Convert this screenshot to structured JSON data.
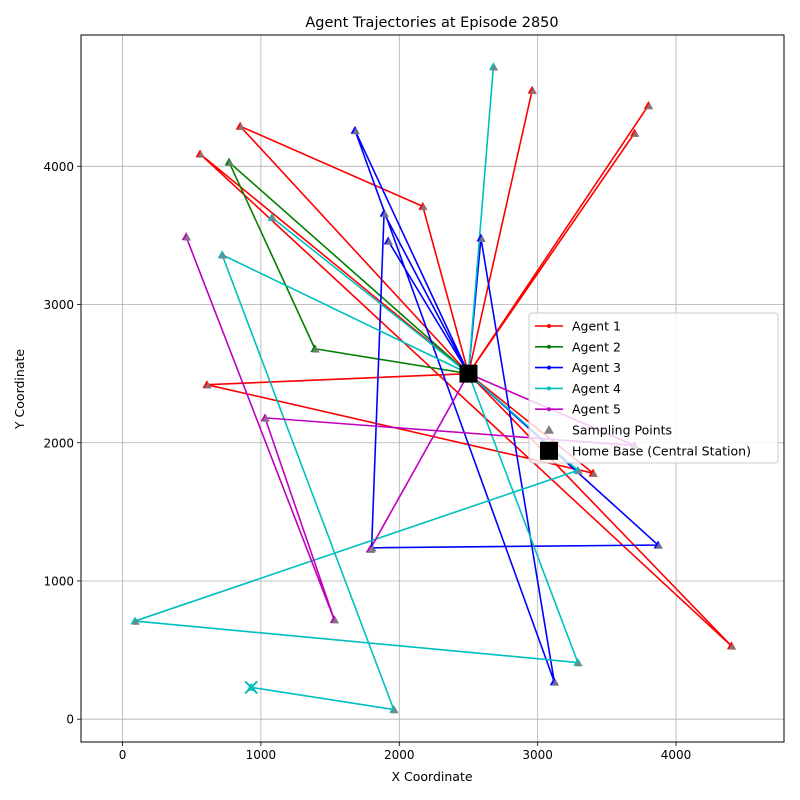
{
  "chart_data": {
    "type": "line",
    "title": "Agent Trajectories at Episode 2850",
    "xlabel": "X Coordinate",
    "ylabel": "Y Coordinate",
    "xlim": [
      -300,
      4780
    ],
    "ylim": [
      -165,
      4950
    ],
    "xticks": [
      0,
      1000,
      2000,
      3000,
      4000
    ],
    "yticks": [
      0,
      1000,
      2000,
      3000,
      4000
    ],
    "grid": true,
    "legend_position": "center-right",
    "home_base": {
      "name": "Home Base (Central Station)",
      "x": 2500,
      "y": 2500,
      "color": "#000000"
    },
    "sampling_points_label": "Sampling Points",
    "series": [
      {
        "name": "Agent 1",
        "color": "#ff0000",
        "points": [
          [
            2500,
            2500
          ],
          [
            3800,
            4440
          ],
          [
            2500,
            2500
          ],
          [
            2960,
            4550
          ],
          [
            2500,
            2500
          ],
          [
            3700,
            4240
          ],
          [
            2500,
            2500
          ],
          [
            610,
            2420
          ],
          [
            3400,
            1780
          ],
          [
            2500,
            2500
          ],
          [
            4400,
            530
          ],
          [
            560,
            4090
          ],
          [
            2500,
            2500
          ],
          [
            2170,
            3710
          ],
          [
            850,
            4290
          ],
          [
            2500,
            2500
          ]
        ]
      },
      {
        "name": "Agent 2",
        "color": "#008000",
        "points": [
          [
            2500,
            2500
          ],
          [
            1390,
            2680
          ],
          [
            770,
            4030
          ],
          [
            2500,
            2500
          ]
        ]
      },
      {
        "name": "Agent 3",
        "color": "#0000ff",
        "points": [
          [
            2500,
            2500
          ],
          [
            2590,
            3480
          ],
          [
            3120,
            270
          ],
          [
            1680,
            4260
          ],
          [
            2500,
            2500
          ],
          [
            1890,
            3660
          ],
          [
            1800,
            1240
          ],
          [
            3870,
            1260
          ],
          [
            2500,
            2500
          ],
          [
            1920,
            3460
          ],
          [
            2500,
            2500
          ]
        ]
      },
      {
        "name": "Agent 4",
        "color": "#00bfbf",
        "points": [
          [
            2500,
            2500
          ],
          [
            2680,
            4720
          ],
          [
            2500,
            2500
          ],
          [
            3290,
            1800
          ],
          [
            90,
            710
          ],
          [
            3290,
            410
          ],
          [
            2500,
            2500
          ],
          [
            1080,
            3630
          ],
          [
            2500,
            2500
          ],
          [
            720,
            3360
          ],
          [
            1960,
            70
          ],
          [
            930,
            230
          ]
        ]
      },
      {
        "name": "Agent 5",
        "color": "#bf00bf",
        "points": [
          [
            2500,
            2500
          ],
          [
            1790,
            1230
          ],
          [
            2500,
            2500
          ],
          [
            3700,
            1980
          ],
          [
            1030,
            2180
          ],
          [
            1530,
            720
          ],
          [
            460,
            3490
          ]
        ]
      }
    ],
    "sampling_points": [
      [
        3800,
        4440
      ],
      [
        2960,
        4550
      ],
      [
        3700,
        4240
      ],
      [
        610,
        2420
      ],
      [
        3400,
        1780
      ],
      [
        4400,
        530
      ],
      [
        560,
        4090
      ],
      [
        2170,
        3710
      ],
      [
        850,
        4290
      ],
      [
        1390,
        2680
      ],
      [
        770,
        4030
      ],
      [
        2590,
        3480
      ],
      [
        3120,
        270
      ],
      [
        1680,
        4260
      ],
      [
        1890,
        3660
      ],
      [
        1800,
        1240
      ],
      [
        3870,
        1260
      ],
      [
        1920,
        3460
      ],
      [
        2680,
        4720
      ],
      [
        3290,
        1800
      ],
      [
        90,
        710
      ],
      [
        3290,
        410
      ],
      [
        1080,
        3630
      ],
      [
        720,
        3360
      ],
      [
        1960,
        70
      ],
      [
        1790,
        1230
      ],
      [
        3700,
        1980
      ],
      [
        1030,
        2180
      ],
      [
        1530,
        720
      ],
      [
        460,
        3490
      ]
    ],
    "end_marker": {
      "x": 930,
      "y": 230,
      "color": "#00bfbf"
    }
  }
}
